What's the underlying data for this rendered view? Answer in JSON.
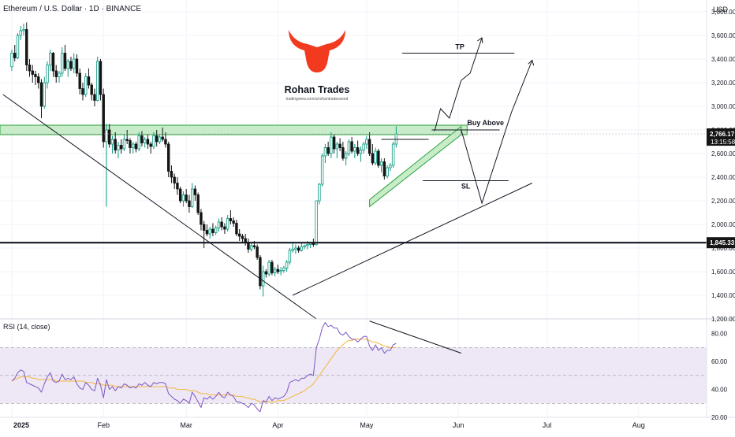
{
  "header": {
    "symbol_title": "Ethereum / U.S. Dollar · 1D · BINANCE",
    "currency": "USD"
  },
  "logo": {
    "name": "Rohan Trades",
    "url": "tradingview.com/u/rohantradesseed",
    "color": "#f23a1f"
  },
  "colors": {
    "up": "#089981",
    "down": "#151515",
    "zone_fill": "#c8ecc9",
    "zone_stroke": "#2aa13a",
    "rsi_line": "#7e57c2",
    "rsi_ma": "#f5b73b",
    "rsi_band": "#ede7f6",
    "price_tag": "#151515"
  },
  "chart_data": [
    {
      "type": "candlestick",
      "title": "Ethereum / U.S. Dollar · 1D · BINANCE",
      "ylim": [
        1200,
        3900
      ],
      "y_ticks": [
        1200,
        1400,
        1600,
        1800,
        2000,
        2200,
        2400,
        2600,
        2800,
        3000,
        3200,
        3400,
        3600,
        3800
      ],
      "y_tick_labels": [
        "1,200.00",
        "1,400.00",
        "1,600.00",
        "1,800.00",
        "2,000.00",
        "2,200.00",
        "2,400.00",
        "2,600.00",
        "2,800.00",
        "3,000.00",
        "3,200.00",
        "3,400.00",
        "3,600.00",
        "3,800.00"
      ],
      "x_ticks": [
        "2025",
        "Feb",
        "Mar",
        "Apr",
        "May",
        "Jun",
        "Jul",
        "Aug"
      ],
      "xlim": [
        "2024-12-28",
        "2025-08-24"
      ],
      "x_tick_dates": [
        "2025-01-01",
        "2025-02-01",
        "2025-03-01",
        "2025-04-01",
        "2025-05-01",
        "2025-06-01",
        "2025-07-01",
        "2025-08-01"
      ],
      "start_date": "2025-01-01",
      "ohlc": [
        [
          3335,
          3480,
          3300,
          3450
        ],
        [
          3450,
          3520,
          3380,
          3410
        ],
        [
          3410,
          3620,
          3400,
          3600
        ],
        [
          3600,
          3680,
          3560,
          3640
        ],
        [
          3640,
          3700,
          3600,
          3650
        ],
        [
          3650,
          3710,
          3300,
          3350
        ],
        [
          3350,
          3400,
          3250,
          3300
        ],
        [
          3300,
          3350,
          3200,
          3270
        ],
        [
          3270,
          3300,
          3180,
          3250
        ],
        [
          3250,
          3280,
          3150,
          3200
        ],
        [
          3200,
          3230,
          2900,
          3000
        ],
        [
          3000,
          3250,
          2980,
          3200
        ],
        [
          3200,
          3380,
          3150,
          3350
        ],
        [
          3350,
          3480,
          3300,
          3450
        ],
        [
          3450,
          3460,
          3250,
          3300
        ],
        [
          3300,
          3350,
          3200,
          3250
        ],
        [
          3250,
          3300,
          3200,
          3280
        ],
        [
          3280,
          3500,
          3250,
          3450
        ],
        [
          3450,
          3520,
          3300,
          3320
        ],
        [
          3320,
          3400,
          3250,
          3380
        ],
        [
          3380,
          3420,
          3300,
          3320
        ],
        [
          3320,
          3450,
          3280,
          3400
        ],
        [
          3400,
          3440,
          3250,
          3280
        ],
        [
          3280,
          3320,
          3100,
          3150
        ],
        [
          3150,
          3200,
          3050,
          3100
        ],
        [
          3100,
          3280,
          3080,
          3250
        ],
        [
          3250,
          3320,
          3150,
          3180
        ],
        [
          3180,
          3200,
          3050,
          3100
        ],
        [
          3100,
          3150,
          3000,
          3050
        ],
        [
          3050,
          3420,
          3040,
          3380
        ],
        [
          3380,
          3400,
          3050,
          3100
        ],
        [
          3100,
          3150,
          2650,
          2700
        ],
        [
          2700,
          2850,
          2150,
          2800
        ],
        [
          2800,
          2850,
          2650,
          2680
        ],
        [
          2680,
          2750,
          2600,
          2720
        ],
        [
          2720,
          2780,
          2600,
          2630
        ],
        [
          2630,
          2700,
          2560,
          2670
        ],
        [
          2670,
          2720,
          2600,
          2640
        ],
        [
          2640,
          2760,
          2620,
          2720
        ],
        [
          2720,
          2800,
          2680,
          2710
        ],
        [
          2710,
          2730,
          2600,
          2650
        ],
        [
          2650,
          2700,
          2600,
          2680
        ],
        [
          2680,
          2700,
          2610,
          2640
        ],
        [
          2640,
          2780,
          2620,
          2750
        ],
        [
          2750,
          2790,
          2660,
          2690
        ],
        [
          2690,
          2740,
          2650,
          2720
        ],
        [
          2720,
          2760,
          2640,
          2680
        ],
        [
          2680,
          2700,
          2600,
          2660
        ],
        [
          2660,
          2780,
          2640,
          2750
        ],
        [
          2750,
          2800,
          2660,
          2700
        ],
        [
          2700,
          2760,
          2680,
          2740
        ],
        [
          2740,
          2820,
          2700,
          2720
        ],
        [
          2720,
          2780,
          2650,
          2680
        ],
        [
          2680,
          2700,
          2400,
          2450
        ],
        [
          2450,
          2500,
          2350,
          2400
        ],
        [
          2400,
          2430,
          2300,
          2350
        ],
        [
          2350,
          2400,
          2250,
          2300
        ],
        [
          2300,
          2320,
          2180,
          2200
        ],
        [
          2200,
          2280,
          2150,
          2250
        ],
        [
          2250,
          2300,
          2180,
          2200
        ],
        [
          2200,
          2250,
          2100,
          2150
        ],
        [
          2150,
          2350,
          2140,
          2300
        ],
        [
          2300,
          2330,
          2200,
          2250
        ],
        [
          2250,
          2270,
          2080,
          2100
        ],
        [
          2100,
          2130,
          1950,
          2000
        ],
        [
          2000,
          2030,
          1800,
          1950
        ],
        [
          1950,
          2000,
          1900,
          1920
        ],
        [
          1920,
          1980,
          1880,
          1960
        ],
        [
          1960,
          2010,
          1900,
          1930
        ],
        [
          1930,
          1990,
          1910,
          1970
        ],
        [
          1970,
          2050,
          1940,
          2020
        ],
        [
          2020,
          2060,
          1950,
          1980
        ],
        [
          1980,
          2010,
          1920,
          1960
        ],
        [
          1960,
          2080,
          1940,
          2050
        ],
        [
          2050,
          2120,
          2000,
          2030
        ],
        [
          2030,
          2060,
          1980,
          2010
        ],
        [
          2010,
          2040,
          1900,
          1920
        ],
        [
          1920,
          1960,
          1860,
          1900
        ],
        [
          1900,
          1920,
          1850,
          1880
        ],
        [
          1880,
          1920,
          1820,
          1850
        ],
        [
          1850,
          1880,
          1760,
          1790
        ],
        [
          1790,
          1850,
          1770,
          1820
        ],
        [
          1820,
          1860,
          1790,
          1810
        ],
        [
          1810,
          1830,
          1700,
          1720
        ],
        [
          1720,
          1740,
          1450,
          1480
        ],
        [
          1480,
          1650,
          1390,
          1600
        ],
        [
          1600,
          1620,
          1550,
          1580
        ],
        [
          1580,
          1700,
          1560,
          1680
        ],
        [
          1680,
          1700,
          1570,
          1590
        ],
        [
          1590,
          1640,
          1560,
          1620
        ],
        [
          1620,
          1660,
          1580,
          1600
        ],
        [
          1600,
          1640,
          1570,
          1610
        ],
        [
          1610,
          1650,
          1590,
          1630
        ],
        [
          1630,
          1700,
          1600,
          1680
        ],
        [
          1680,
          1800,
          1660,
          1780
        ],
        [
          1780,
          1850,
          1760,
          1790
        ],
        [
          1790,
          1830,
          1750,
          1800
        ],
        [
          1800,
          1820,
          1760,
          1780
        ],
        [
          1780,
          1840,
          1770,
          1810
        ],
        [
          1810,
          1830,
          1790,
          1820
        ],
        [
          1820,
          1860,
          1790,
          1830
        ],
        [
          1830,
          1850,
          1800,
          1840
        ],
        [
          1840,
          1880,
          1810,
          1830
        ],
        [
          1830,
          2200,
          1820,
          2200
        ],
        [
          2200,
          2350,
          2170,
          2340
        ],
        [
          2340,
          2600,
          2320,
          2580
        ],
        [
          2580,
          2680,
          2520,
          2650
        ],
        [
          2650,
          2700,
          2580,
          2600
        ],
        [
          2600,
          2780,
          2560,
          2740
        ],
        [
          2740,
          2760,
          2600,
          2640
        ],
        [
          2640,
          2700,
          2560,
          2680
        ],
        [
          2680,
          2730,
          2620,
          2650
        ],
        [
          2650,
          2700,
          2540,
          2560
        ],
        [
          2560,
          2620,
          2500,
          2600
        ],
        [
          2600,
          2720,
          2580,
          2700
        ],
        [
          2700,
          2740,
          2600,
          2620
        ],
        [
          2620,
          2680,
          2560,
          2650
        ],
        [
          2650,
          2710,
          2580,
          2600
        ],
        [
          2600,
          2660,
          2530,
          2630
        ],
        [
          2630,
          2700,
          2600,
          2680
        ],
        [
          2680,
          2750,
          2640,
          2720
        ],
        [
          2720,
          2780,
          2580,
          2600
        ],
        [
          2600,
          2680,
          2500,
          2520
        ],
        [
          2520,
          2650,
          2500,
          2620
        ],
        [
          2620,
          2640,
          2480,
          2500
        ],
        [
          2500,
          2560,
          2440,
          2530
        ],
        [
          2530,
          2560,
          2380,
          2410
        ],
        [
          2410,
          2500,
          2390,
          2480
        ],
        [
          2480,
          2520,
          2450,
          2500
        ],
        [
          2500,
          2700,
          2480,
          2680
        ],
        [
          2680,
          2830,
          2650,
          2766
        ]
      ],
      "annotations": {
        "buy_zone": [
          2760,
          2840
        ],
        "support_level": 1845.33,
        "current_price": 2766.17,
        "countdown": "13:15:58",
        "tp_level": 3450,
        "buy_above_level": 2800,
        "sl_level": 2370,
        "labels": {
          "tp": "TP",
          "buy_above": "Buy Above",
          "sl": "SL"
        },
        "price_tag_label": "1,845.33",
        "current_price_label": "2,766.17"
      }
    },
    {
      "type": "line",
      "title": "RSI (14, close)",
      "ylim": [
        20,
        90
      ],
      "y_ticks": [
        20,
        40,
        60,
        80
      ],
      "y_tick_labels": [
        "20.00",
        "40.00",
        "60.00",
        "80.00"
      ],
      "band": [
        30,
        70
      ],
      "series": [
        {
          "name": "RSI",
          "values": [
            46,
            48,
            52,
            54,
            53,
            45,
            44,
            43,
            42,
            41,
            38,
            44,
            49,
            52,
            46,
            45,
            46,
            51,
            47,
            48,
            47,
            49,
            44,
            41,
            40,
            45,
            43,
            40,
            39,
            48,
            43,
            34,
            47,
            40,
            42,
            39,
            42,
            41,
            44,
            43,
            41,
            42,
            41,
            44,
            43,
            45,
            43,
            42,
            45,
            44,
            45,
            45,
            44,
            37,
            35,
            33,
            32,
            30,
            33,
            32,
            30,
            38,
            35,
            31,
            27,
            34,
            33,
            35,
            33,
            35,
            38,
            35,
            34,
            38,
            36,
            35,
            31,
            31,
            30,
            29,
            27,
            30,
            29,
            26,
            24,
            32,
            31,
            35,
            32,
            34,
            33,
            34,
            35,
            38,
            45,
            46,
            47,
            46,
            48,
            48,
            50,
            51,
            50,
            70,
            76,
            84,
            88,
            85,
            86,
            84,
            84,
            80,
            79,
            81,
            78,
            76,
            76,
            74,
            76,
            78,
            78,
            71,
            68,
            72,
            68,
            70,
            66,
            68,
            68,
            72,
            73
          ]
        },
        {
          "name": "RSI-MA",
          "values": [
            46,
            47,
            48,
            49,
            49,
            49,
            49,
            48,
            48,
            47,
            47,
            47,
            47,
            47,
            47,
            46,
            46,
            46,
            46,
            46,
            46,
            46,
            46,
            46,
            46,
            45,
            45,
            45,
            44,
            44,
            44,
            43,
            43,
            43,
            43,
            42,
            42,
            42,
            42,
            42,
            42,
            42,
            42,
            42,
            42,
            42,
            42,
            42,
            42,
            42,
            42,
            42,
            42,
            41,
            41,
            41,
            40,
            40,
            40,
            40,
            39,
            39,
            39,
            38,
            37,
            37,
            37,
            36,
            36,
            36,
            36,
            36,
            36,
            36,
            36,
            36,
            35,
            35,
            35,
            34,
            34,
            33,
            33,
            32,
            31,
            31,
            31,
            31,
            31,
            31,
            32,
            32,
            32,
            33,
            34,
            35,
            36,
            37,
            38,
            39,
            41,
            42,
            44,
            47,
            50,
            53,
            56,
            59,
            62,
            65,
            68,
            70,
            72,
            74,
            75,
            75,
            76,
            76,
            76,
            76,
            76,
            75,
            74,
            74,
            73,
            72,
            71,
            71,
            70,
            70,
            70
          ]
        }
      ]
    }
  ]
}
